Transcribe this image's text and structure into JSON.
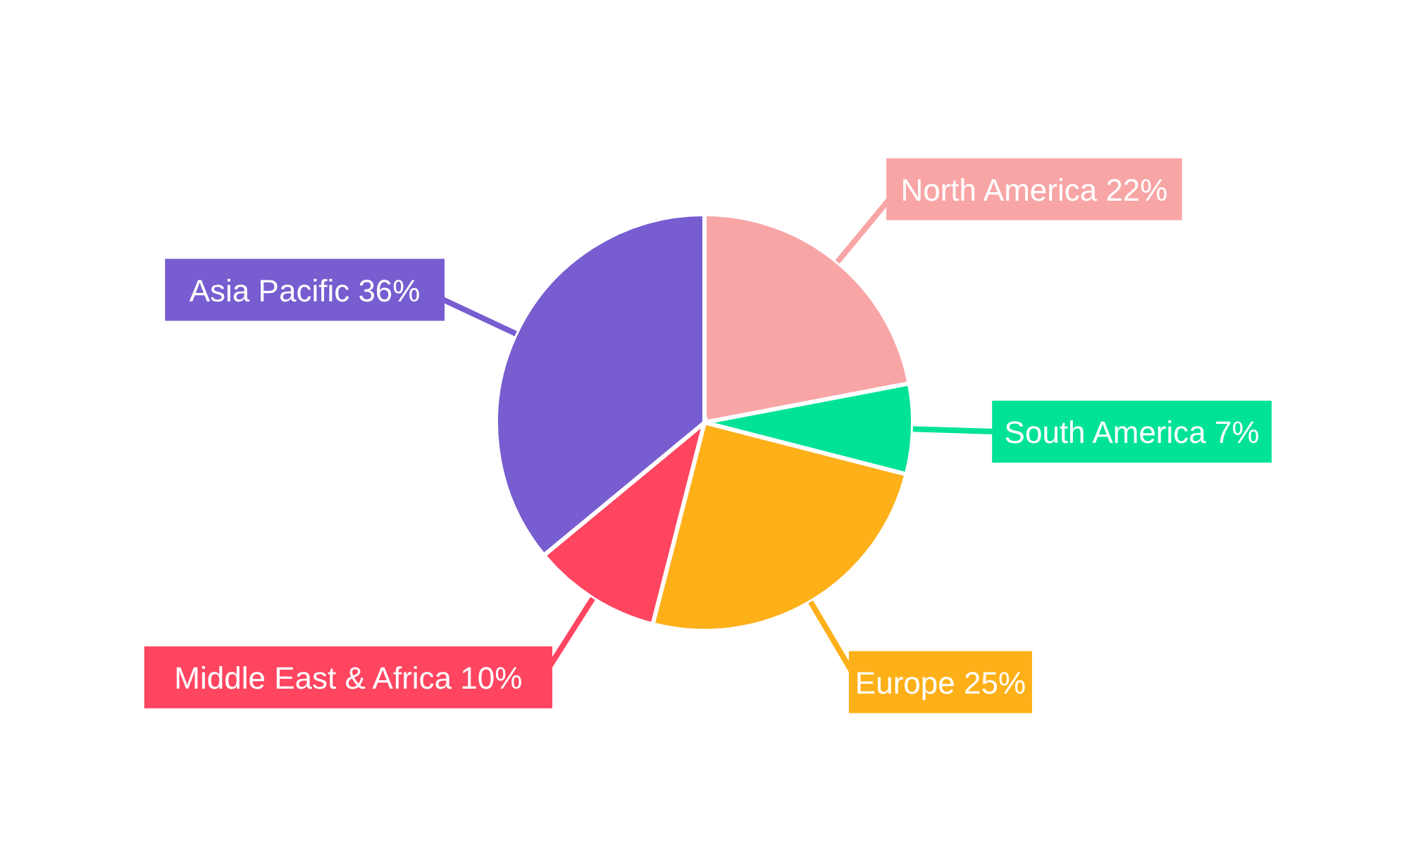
{
  "chart_data": {
    "type": "pie",
    "categories": [
      "North America",
      "South America",
      "Europe",
      "Middle East & Africa",
      "Asia Pacific"
    ],
    "values": [
      22,
      7,
      25,
      10,
      36
    ],
    "value_labels": [
      "22%",
      "7%",
      "25%",
      "10%",
      "36%"
    ],
    "colors": [
      "#f8a5a6",
      "#00e396",
      "#feb019",
      "#ff4560",
      "#775dd0"
    ]
  }
}
